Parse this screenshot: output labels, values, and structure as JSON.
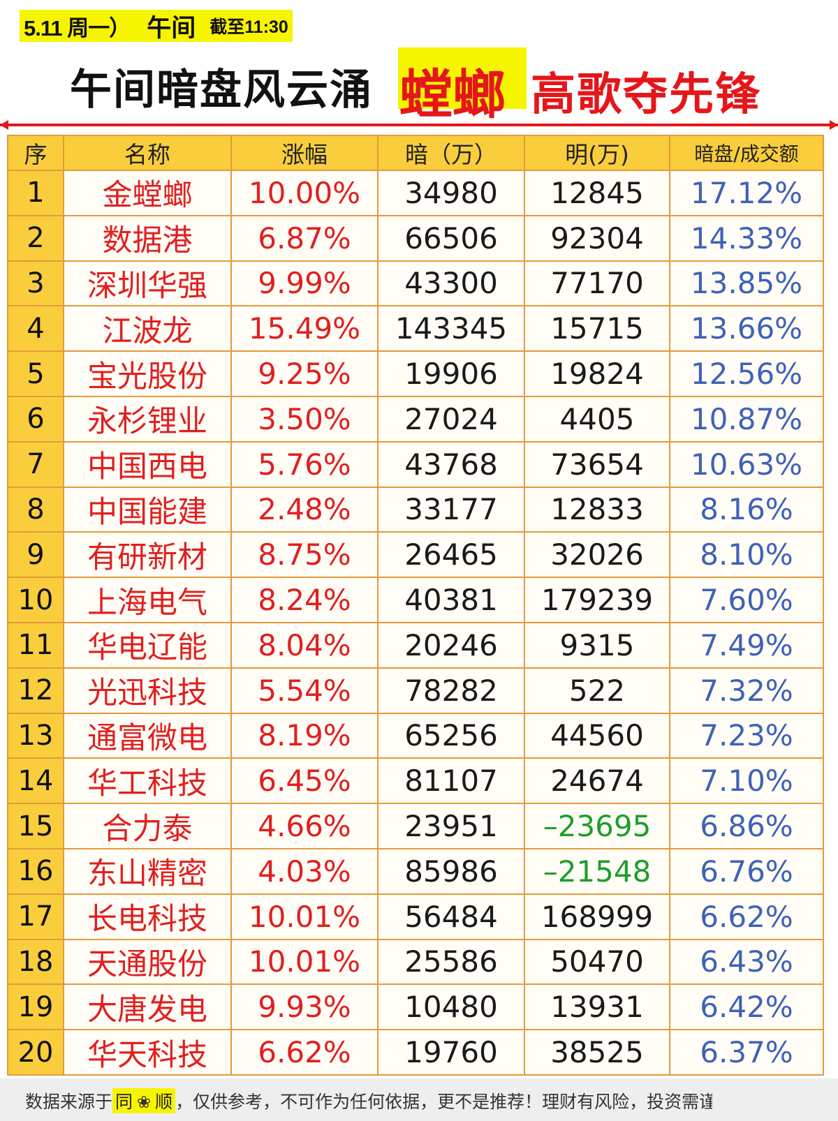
{
  "header": {
    "date": "5.11 周一）",
    "session": "午间",
    "cutoff": "截至11:30"
  },
  "headline": {
    "left": "午间暗盘风云涌",
    "highlight": "螳螂",
    "right": "高歌夺先锋"
  },
  "table": {
    "headers": [
      "序",
      "名称",
      "涨幅",
      "暗（万）",
      "明(万)",
      "暗盘/成交额"
    ],
    "rows": [
      {
        "idx": "1",
        "name": "金螳螂",
        "pct": "10.00%",
        "dark": "34980",
        "lit": "12845",
        "ratio": "17.12%"
      },
      {
        "idx": "2",
        "name": "数据港",
        "pct": "6.87%",
        "dark": "66506",
        "lit": "92304",
        "ratio": "14.33%"
      },
      {
        "idx": "3",
        "name": "深圳华强",
        "pct": "9.99%",
        "dark": "43300",
        "lit": "77170",
        "ratio": "13.85%"
      },
      {
        "idx": "4",
        "name": "江波龙",
        "pct": "15.49%",
        "dark": "143345",
        "lit": "15715",
        "ratio": "13.66%"
      },
      {
        "idx": "5",
        "name": "宝光股份",
        "pct": "9.25%",
        "dark": "19906",
        "lit": "19824",
        "ratio": "12.56%"
      },
      {
        "idx": "6",
        "name": "永杉锂业",
        "pct": "3.50%",
        "dark": "27024",
        "lit": "4405",
        "ratio": "10.87%"
      },
      {
        "idx": "7",
        "name": "中国西电",
        "pct": "5.76%",
        "dark": "43768",
        "lit": "73654",
        "ratio": "10.63%"
      },
      {
        "idx": "8",
        "name": "中国能建",
        "pct": "2.48%",
        "dark": "33177",
        "lit": "12833",
        "ratio": "8.16%"
      },
      {
        "idx": "9",
        "name": "有研新材",
        "pct": "8.75%",
        "dark": "26465",
        "lit": "32026",
        "ratio": "8.10%"
      },
      {
        "idx": "10",
        "name": "上海电气",
        "pct": "8.24%",
        "dark": "40381",
        "lit": "179239",
        "ratio": "7.60%"
      },
      {
        "idx": "11",
        "name": "华电辽能",
        "pct": "8.04%",
        "dark": "20246",
        "lit": "9315",
        "ratio": "7.49%"
      },
      {
        "idx": "12",
        "name": "光迅科技",
        "pct": "5.54%",
        "dark": "78282",
        "lit": "522",
        "ratio": "7.32%"
      },
      {
        "idx": "13",
        "name": "通富微电",
        "pct": "8.19%",
        "dark": "65256",
        "lit": "44560",
        "ratio": "7.23%"
      },
      {
        "idx": "14",
        "name": "华工科技",
        "pct": "6.45%",
        "dark": "81107",
        "lit": "24674",
        "ratio": "7.10%"
      },
      {
        "idx": "15",
        "name": "合力泰",
        "pct": "4.66%",
        "dark": "23951",
        "lit": "–23695",
        "ratio": "6.86%",
        "neg": true
      },
      {
        "idx": "16",
        "name": "东山精密",
        "pct": "4.03%",
        "dark": "85986",
        "lit": "–21548",
        "ratio": "6.76%",
        "neg": true
      },
      {
        "idx": "17",
        "name": "长电科技",
        "pct": "10.01%",
        "dark": "56484",
        "lit": "168999",
        "ratio": "6.62%"
      },
      {
        "idx": "18",
        "name": "天通股份",
        "pct": "10.01%",
        "dark": "25586",
        "lit": "50470",
        "ratio": "6.43%"
      },
      {
        "idx": "19",
        "name": "大唐发电",
        "pct": "9.93%",
        "dark": "10480",
        "lit": "13931",
        "ratio": "6.42%"
      },
      {
        "idx": "20",
        "name": "华天科技",
        "pct": "6.62%",
        "dark": "19760",
        "lit": "38525",
        "ratio": "6.37%"
      }
    ]
  },
  "footer": {
    "prefix": "数据来源于",
    "brand_a": "同",
    "brand_icon": "flower-icon",
    "brand_b": "顺",
    "disclaimer": "，仅供参考，不可作为任何依据，更不是推荐！理财有风险，投资需谨慎"
  },
  "colors": {
    "highlight_yellow": "#f7f400",
    "red": "#e5161a",
    "header_gold": "#f9cd3c",
    "border_orange": "#e39a3a",
    "ratio_blue": "#3f62b6",
    "negative_green": "#1d9e2b"
  }
}
